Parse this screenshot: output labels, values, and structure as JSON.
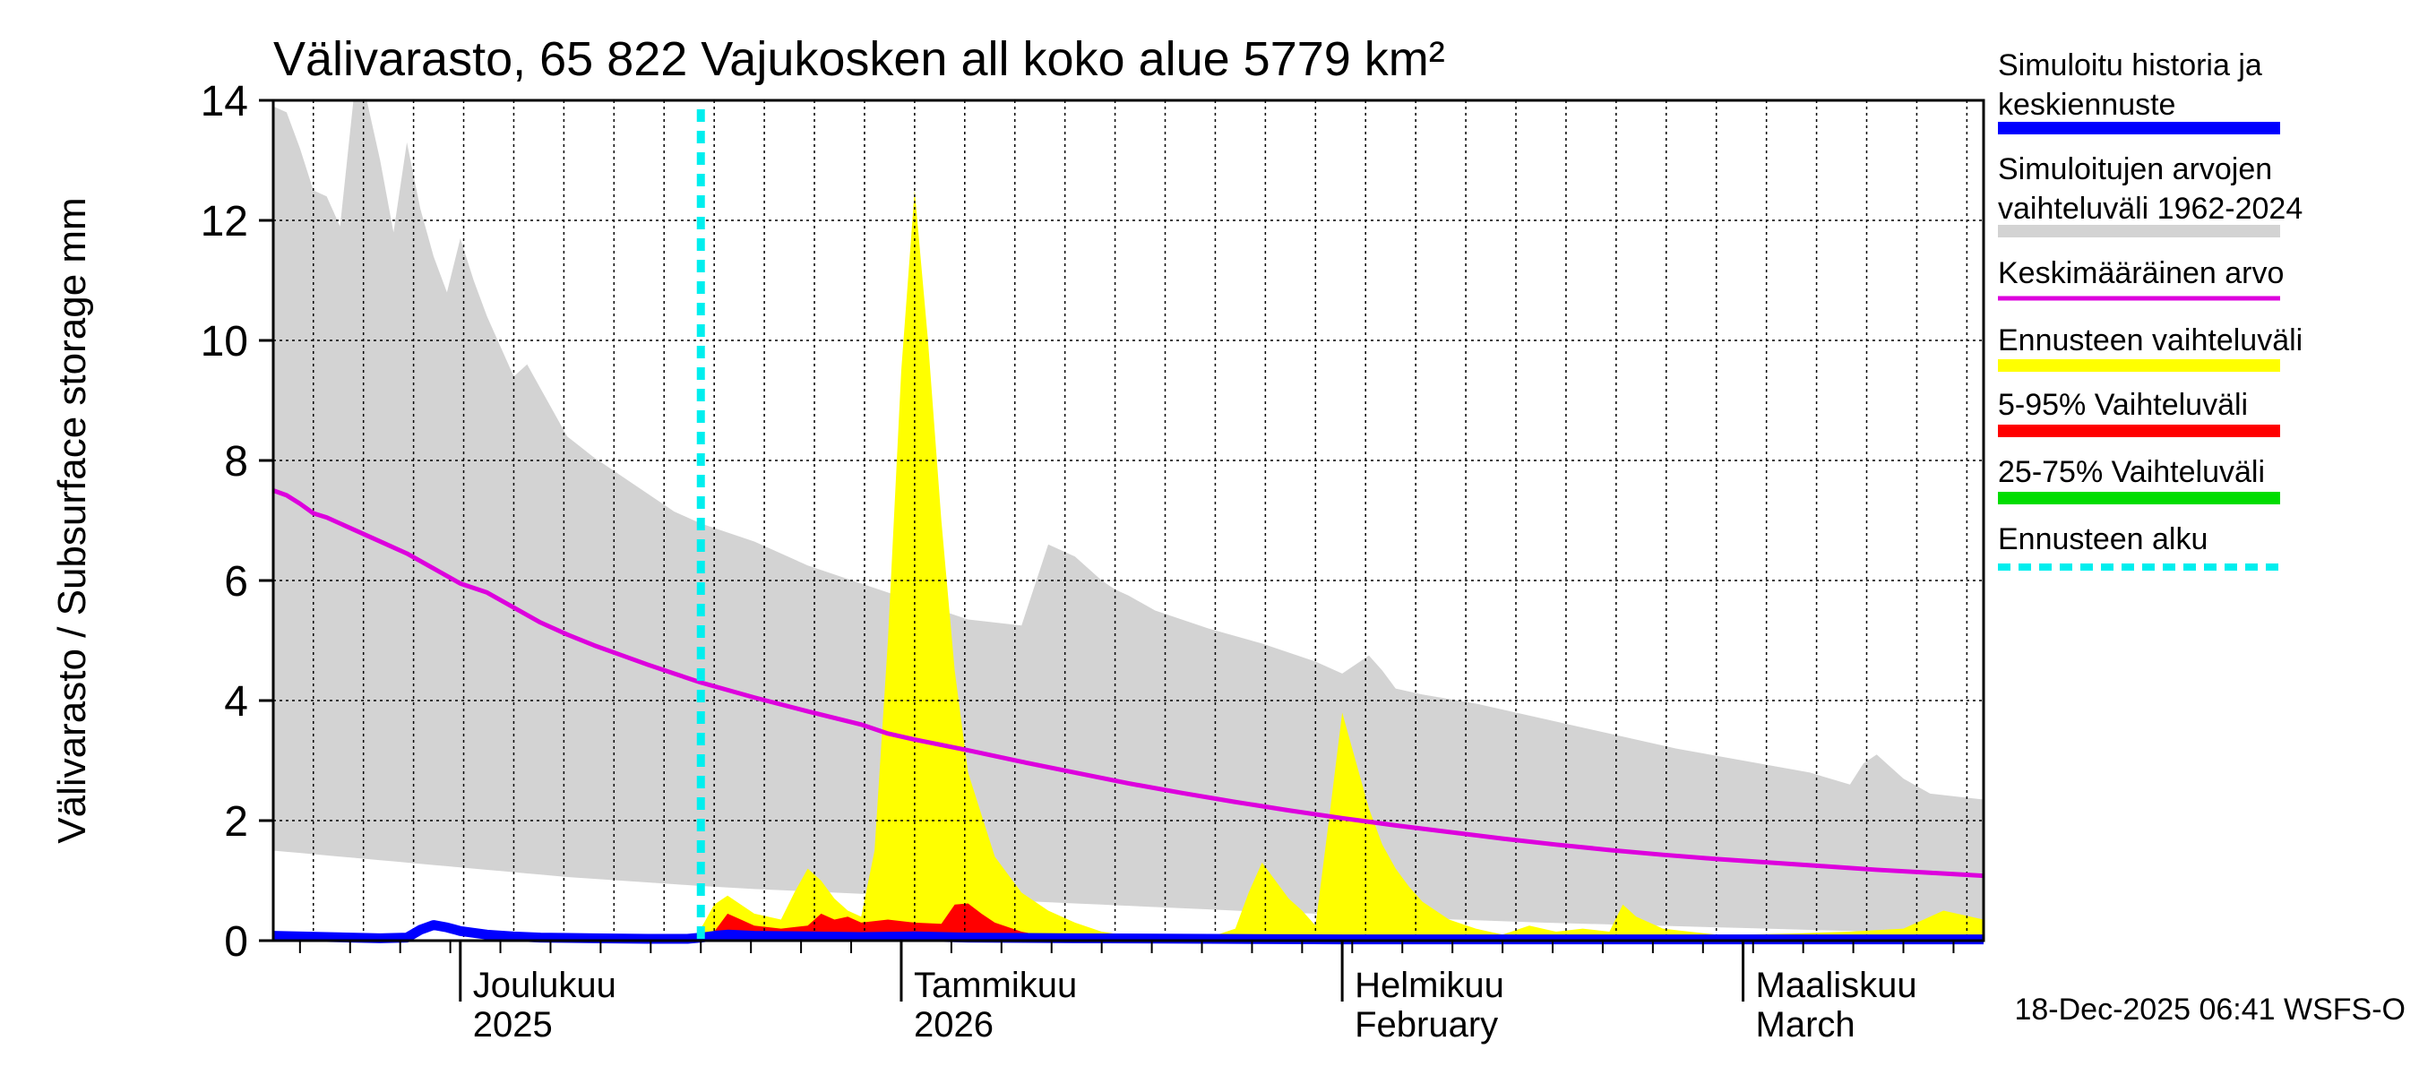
{
  "chart_data": {
    "type": "area",
    "title": "Välivarasto, 65 822 Vajukosken all koko alue 5779 km²",
    "ylabel": "Välivarasto / Subsurface storage  mm",
    "ylim": [
      0,
      14
    ],
    "xlim": [
      0,
      128
    ],
    "yticks": [
      0,
      2,
      4,
      6,
      8,
      10,
      12,
      14
    ],
    "grid": true,
    "forecast_start_day": 32,
    "month_boundaries": [
      14,
      47,
      80,
      110
    ],
    "x_labels": [
      {
        "day": 14,
        "line1": "Joulukuu",
        "line2": "2025"
      },
      {
        "day": 47,
        "line1": "Tammikuu",
        "line2": "2026"
      },
      {
        "day": 80,
        "line1": "Helmikuu",
        "line2": "February"
      },
      {
        "day": 110,
        "line1": "Maaliskuu",
        "line2": "March"
      }
    ],
    "legend": [
      {
        "label": "Simuloitu historia ja keskiennuste",
        "color": "#0000ff",
        "style": "solid"
      },
      {
        "label": "Simuloitujen arvojen vaihteluväli 1962-2024",
        "color": "#d3d3d3",
        "style": "solid"
      },
      {
        "label": "Keskimääräinen arvo",
        "color": "#dd00dd",
        "style": "solid"
      },
      {
        "label": "Ennusteen vaihteluväli",
        "color": "#ffff00",
        "style": "solid"
      },
      {
        "label": "5-95% Vaihteluväli",
        "color": "#ff0000",
        "style": "solid"
      },
      {
        "label": "25-75% Vaihteluväli",
        "color": "#00dd00",
        "style": "solid"
      },
      {
        "label": "Ennusteen alku",
        "color": "#00eeee",
        "style": "dashed"
      }
    ],
    "series": [
      {
        "name": "Simuloitujen arvojen vaihteluväli 1962-2024",
        "kind": "band",
        "color": "#d3d3d3",
        "x": [
          0,
          1,
          2,
          3,
          4,
          5,
          6,
          7,
          8,
          9,
          10,
          11,
          12,
          13,
          14,
          15,
          16,
          17,
          18,
          19,
          20,
          21,
          22,
          24,
          26,
          28,
          30,
          32,
          36,
          40,
          44,
          48,
          52,
          56,
          58,
          60,
          61,
          62,
          63,
          64,
          66,
          70,
          74,
          78,
          80,
          82,
          83,
          84,
          86,
          90,
          95,
          100,
          105,
          110,
          115,
          118,
          119,
          120,
          121,
          122,
          124,
          126,
          128
        ],
        "upper": [
          13.9,
          13.8,
          13.2,
          12.5,
          12.4,
          11.9,
          14.0,
          14.0,
          13.0,
          11.8,
          13.3,
          12.2,
          11.4,
          10.8,
          11.7,
          11.0,
          10.4,
          9.9,
          9.4,
          9.6,
          9.2,
          8.8,
          8.4,
          8.05,
          7.75,
          7.45,
          7.15,
          6.95,
          6.65,
          6.25,
          5.95,
          5.65,
          5.35,
          5.25,
          6.6,
          6.4,
          6.2,
          6.0,
          5.85,
          5.75,
          5.5,
          5.2,
          4.95,
          4.65,
          4.45,
          4.75,
          4.5,
          4.2,
          4.1,
          3.95,
          3.7,
          3.45,
          3.2,
          3.0,
          2.8,
          2.6,
          2.95,
          3.1,
          2.9,
          2.7,
          2.45,
          2.4,
          2.35
        ],
        "lower": [
          1.5,
          1.48,
          1.46,
          1.44,
          1.42,
          1.4,
          1.38,
          1.36,
          1.34,
          1.32,
          1.3,
          1.28,
          1.26,
          1.24,
          1.22,
          1.2,
          1.18,
          1.16,
          1.14,
          1.12,
          1.1,
          1.08,
          1.06,
          1.03,
          1.0,
          0.97,
          0.94,
          0.91,
          0.86,
          0.82,
          0.78,
          0.74,
          0.7,
          0.66,
          0.64,
          0.62,
          0.61,
          0.6,
          0.59,
          0.58,
          0.56,
          0.52,
          0.48,
          0.45,
          0.43,
          0.41,
          0.4,
          0.39,
          0.37,
          0.34,
          0.3,
          0.27,
          0.24,
          0.21,
          0.18,
          0.16,
          0.15,
          0.15,
          0.14,
          0.14,
          0.13,
          0.12,
          0.12
        ]
      },
      {
        "name": "Ennusteen vaihteluväli",
        "kind": "band",
        "color": "#ffff00",
        "x": [
          32,
          33,
          34,
          36,
          38,
          39,
          40,
          41,
          42,
          43,
          44,
          45,
          46,
          47,
          48,
          49,
          50,
          51,
          52,
          54,
          56,
          58,
          60,
          62,
          64,
          66,
          68,
          70,
          72,
          73,
          74,
          75,
          76,
          77,
          78,
          79,
          80,
          81,
          82,
          83,
          84,
          85,
          86,
          88,
          90,
          92,
          94,
          96,
          98,
          100,
          101,
          102,
          103,
          104,
          106,
          108,
          110,
          114,
          118,
          122,
          124,
          125,
          126,
          128
        ],
        "upper": [
          0.2,
          0.6,
          0.75,
          0.45,
          0.35,
          0.8,
          1.2,
          1.0,
          0.7,
          0.5,
          0.4,
          1.5,
          5.0,
          9.5,
          12.5,
          10.0,
          7.0,
          4.5,
          2.8,
          1.4,
          0.8,
          0.5,
          0.3,
          0.15,
          0.08,
          0.06,
          0.05,
          0.05,
          0.2,
          0.8,
          1.3,
          1.0,
          0.7,
          0.5,
          0.25,
          2.0,
          3.8,
          3.0,
          2.2,
          1.6,
          1.2,
          0.9,
          0.65,
          0.35,
          0.2,
          0.1,
          0.25,
          0.15,
          0.2,
          0.15,
          0.6,
          0.4,
          0.3,
          0.2,
          0.15,
          0.1,
          0.1,
          0.12,
          0.15,
          0.2,
          0.4,
          0.5,
          0.45,
          0.35
        ],
        "lower": [
          0,
          0,
          0,
          0,
          0,
          0,
          0,
          0,
          0,
          0,
          0,
          0,
          0,
          0,
          0,
          0,
          0,
          0,
          0,
          0,
          0,
          0,
          0,
          0,
          0,
          0,
          0,
          0,
          0,
          0,
          0,
          0,
          0,
          0,
          0,
          0,
          0,
          0,
          0,
          0,
          0,
          0,
          0,
          0,
          0,
          0,
          0,
          0,
          0,
          0,
          0,
          0,
          0,
          0,
          0,
          0,
          0,
          0,
          0,
          0,
          0,
          0,
          0,
          0
        ]
      },
      {
        "name": "5-95% Vaihteluväli",
        "kind": "band",
        "color": "#ff0000",
        "x": [
          32,
          33,
          34,
          35,
          36,
          38,
          40,
          41,
          42,
          43,
          44,
          46,
          48,
          50,
          51,
          52,
          53,
          54,
          56,
          58,
          60,
          64,
          128
        ],
        "upper": [
          0.05,
          0.15,
          0.45,
          0.35,
          0.25,
          0.2,
          0.25,
          0.45,
          0.35,
          0.4,
          0.3,
          0.35,
          0.3,
          0.28,
          0.6,
          0.62,
          0.45,
          0.3,
          0.15,
          0.06,
          0.03,
          0.02,
          0.02
        ],
        "lower": [
          0,
          0,
          0,
          0,
          0,
          0,
          0,
          0,
          0,
          0,
          0,
          0,
          0,
          0,
          0,
          0,
          0,
          0,
          0,
          0,
          0,
          0,
          0
        ]
      },
      {
        "name": "Keskimääräinen arvo",
        "kind": "line",
        "color": "#dd00dd",
        "x": [
          0,
          1,
          2,
          3,
          4,
          6,
          8,
          10,
          12,
          14,
          16,
          18,
          20,
          22,
          24,
          26,
          28,
          30,
          32,
          36,
          40,
          44,
          46,
          48,
          52,
          56,
          60,
          64,
          68,
          72,
          76,
          80,
          84,
          88,
          92,
          96,
          100,
          104,
          108,
          112,
          116,
          120,
          124,
          128
        ],
        "values": [
          7.5,
          7.42,
          7.28,
          7.12,
          7.05,
          6.85,
          6.65,
          6.45,
          6.2,
          5.95,
          5.8,
          5.55,
          5.3,
          5.1,
          4.92,
          4.76,
          4.6,
          4.45,
          4.3,
          4.05,
          3.82,
          3.6,
          3.45,
          3.35,
          3.17,
          2.98,
          2.8,
          2.62,
          2.46,
          2.31,
          2.17,
          2.04,
          1.92,
          1.81,
          1.7,
          1.6,
          1.51,
          1.43,
          1.36,
          1.3,
          1.24,
          1.18,
          1.13,
          1.08
        ]
      },
      {
        "name": "Simuloitu historia ja keskiennuste",
        "kind": "line",
        "color": "#0000ff",
        "x": [
          0,
          4,
          8,
          10,
          11,
          12,
          13,
          14,
          16,
          18,
          20,
          24,
          28,
          31,
          32,
          33,
          34,
          36,
          40,
          44,
          48,
          52,
          60,
          70,
          80,
          90,
          100,
          110,
          120,
          128
        ],
        "values": [
          0.08,
          0.06,
          0.04,
          0.05,
          0.18,
          0.26,
          0.22,
          0.16,
          0.1,
          0.07,
          0.05,
          0.04,
          0.03,
          0.03,
          0.05,
          0.08,
          0.1,
          0.08,
          0.07,
          0.06,
          0.07,
          0.05,
          0.04,
          0.03,
          0.02,
          0.02,
          0.02,
          0.02,
          0.02,
          0.02
        ]
      }
    ]
  },
  "footer": {
    "timestamp": "18-Dec-2025 06:41 WSFS-O"
  }
}
